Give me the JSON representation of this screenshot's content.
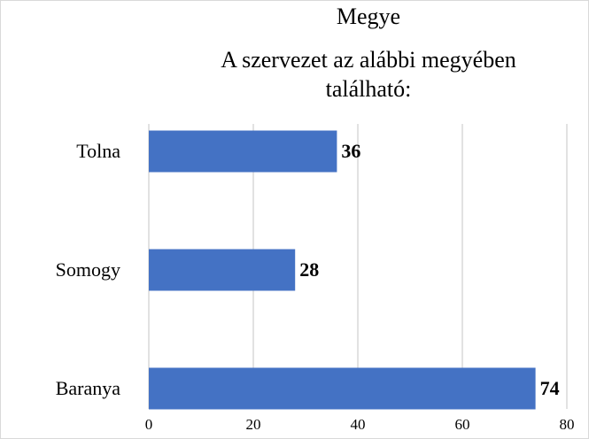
{
  "chart_data": {
    "type": "bar",
    "orientation": "horizontal",
    "title": [
      "Megye",
      "A szervezet az alábbi megyében",
      "található:"
    ],
    "categories": [
      "Tolna",
      "Somogy",
      "Baranya"
    ],
    "values": [
      36,
      28,
      74
    ],
    "color": "#4472c4",
    "xlim": [
      0,
      80
    ],
    "xticks": [
      0,
      20,
      40,
      60,
      80
    ],
    "grid": true
  }
}
